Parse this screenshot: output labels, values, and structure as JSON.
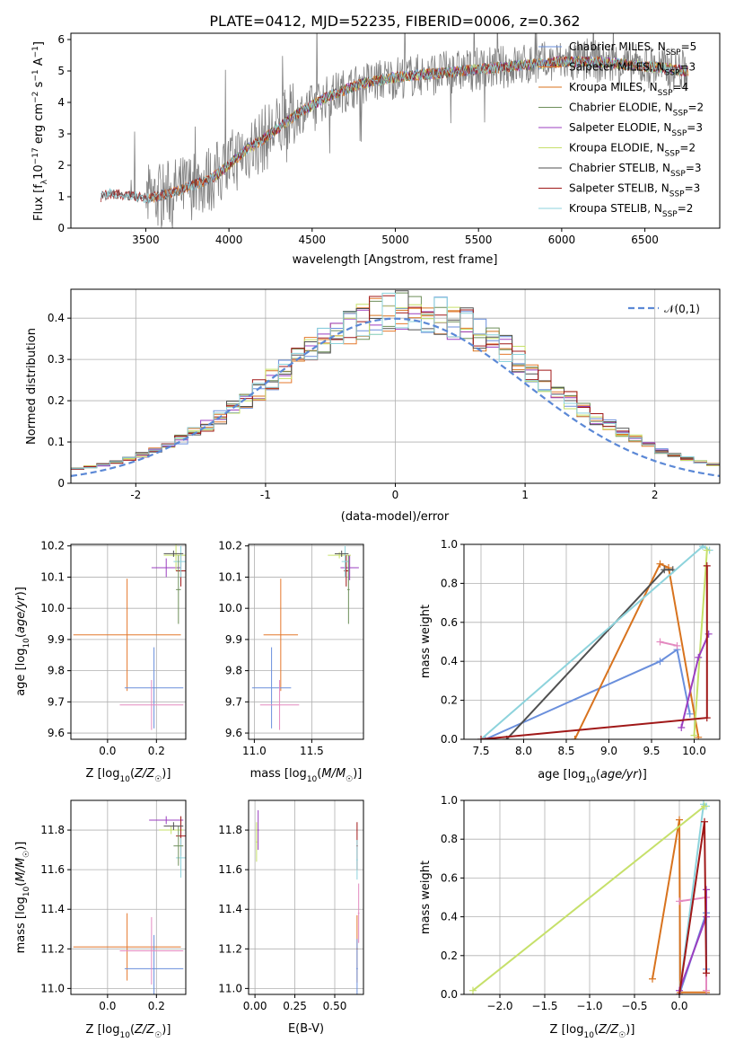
{
  "title": "PLATE=0412, MJD=52235, FIBERID=0006, z=0.362",
  "colors": {
    "chabrier_miles": "#6a8fdc",
    "salpeter_miles": "#e4782c",
    "kroupa_miles": "#d8731e",
    "chabrier_elodie": "#6e8f5a",
    "salpeter_elodie": "#9b3fc0",
    "kroupa_elodie": "#c6e06a",
    "chabrier_stelib": "#505050",
    "salpeter_stelib": "#a01818",
    "kroupa_stelib": "#8dd3dc",
    "data": "#808080",
    "normal": "#5b88d6",
    "pink": "#e48ac0"
  },
  "chart_data": [
    {
      "type": "line",
      "id": "spectrum",
      "title": "PLATE=0412, MJD=52235, FIBERID=0006, z=0.362",
      "xlabel": "wavelength [Angstrom, rest frame]",
      "ylabel": "Flux [f_λ 10^-17 erg cm^-2 s^-1 A^-1]",
      "xlim": [
        3050,
        6950
      ],
      "ylim": [
        0,
        6.2
      ],
      "xticks": [
        3500,
        4000,
        4500,
        5000,
        5500,
        6000,
        6500
      ],
      "yticks": [
        0,
        1,
        2,
        3,
        4,
        5,
        6
      ],
      "legend_position": "top-right",
      "legend": [
        "Chabrier MILES, N_SSP=5",
        "Salpeter MILES, N_SSP=3",
        "Kroupa MILES, N_SSP=4",
        "Chabrier ELODIE, N_SSP=2",
        "Salpeter ELODIE, N_SSP=3",
        "Kroupa ELODIE, N_SSP=2",
        "Chabrier STELIB, N_SSP=3",
        "Salpeter STELIB, N_SSP=3",
        "Kroupa STELIB, N_SSP=2"
      ],
      "model_continuum": {
        "x": [
          3230,
          3280,
          3350,
          3450,
          3520,
          3600,
          3700,
          3800,
          3900,
          4000,
          4100,
          4200,
          4300,
          4400,
          4500,
          4600,
          4700,
          4800,
          4900,
          5000,
          5200,
          5400,
          5600,
          5800,
          6000,
          6200,
          6400,
          6600,
          6750
        ],
        "y": [
          1.0,
          1.1,
          1.05,
          1.0,
          0.95,
          1.05,
          1.2,
          1.4,
          1.6,
          2.0,
          2.5,
          2.8,
          3.2,
          3.6,
          3.9,
          4.2,
          4.4,
          4.6,
          4.7,
          4.8,
          4.9,
          5.0,
          5.1,
          5.2,
          5.3,
          5.3,
          5.2,
          5.1,
          5.0
        ]
      }
    },
    {
      "type": "line",
      "id": "residuals",
      "xlabel": "(data-model)/error",
      "ylabel": "Normed distribution",
      "xlim": [
        -2.5,
        2.5
      ],
      "ylim": [
        0,
        0.47
      ],
      "xticks": [
        -2,
        -1,
        0,
        1,
        2
      ],
      "yticks": [
        0.0,
        0.1,
        0.2,
        0.3,
        0.4
      ],
      "legend_position": "top-right",
      "legend": [
        "𝒩(0,1)"
      ],
      "grid": true
    },
    {
      "type": "scatter",
      "id": "z_age",
      "xlabel": "Z [log10(Z/Z☉)]",
      "ylabel": "age [log10(age/yr)]",
      "xlim": [
        -0.15,
        0.32
      ],
      "ylim": [
        9.58,
        10.205
      ],
      "xticks": [
        0.0,
        0.2
      ],
      "xticklabels": [
        "0.0",
        "0.2"
      ],
      "yticks": [
        9.6,
        9.7,
        9.8,
        9.9,
        10.0,
        10.1,
        10.2
      ],
      "yticklabels": [
        "9.6",
        "9.7",
        "9.8",
        "9.9",
        "10.0",
        "10.1",
        "10.2"
      ],
      "grid": true
    },
    {
      "type": "scatter",
      "id": "mass_age",
      "xlabel": "mass [log10(M/M☉)]",
      "xlim": [
        10.95,
        11.95
      ],
      "ylim": [
        9.58,
        10.205
      ],
      "xticks": [
        11.0,
        11.5
      ],
      "xticklabels": [
        "11.0",
        "11.5"
      ],
      "yticks": [
        9.6,
        9.7,
        9.8,
        9.9,
        10.0,
        10.1,
        10.2
      ],
      "yticklabels": [
        "9.6",
        "9.7",
        "9.8",
        "9.9",
        "10.0",
        "10.1",
        "10.2"
      ],
      "grid": true
    },
    {
      "type": "line",
      "id": "age_weight",
      "xlabel": "age [log10(age/yr)]",
      "ylabel": "mass weight",
      "xlim": [
        7.3,
        10.3
      ],
      "ylim": [
        0,
        1
      ],
      "xticks": [
        7.5,
        8.0,
        8.5,
        9.0,
        9.5,
        10.0
      ],
      "xticklabels": [
        "7.5",
        "8.0",
        "8.5",
        "9.0",
        "9.5",
        "10.0"
      ],
      "yticks": [
        0,
        0.2,
        0.4,
        0.6,
        0.8,
        1.0
      ],
      "yticklabels": [
        "0.0",
        "0.2",
        "0.4",
        "0.6",
        "0.8",
        "1.0"
      ],
      "grid": true
    },
    {
      "type": "scatter",
      "id": "z_mass",
      "xlabel": "Z [log10(Z/Z☉)]",
      "ylabel": "mass [log10(M/M☉)]",
      "xlim": [
        -0.15,
        0.32
      ],
      "ylim": [
        10.97,
        11.95
      ],
      "xticks": [
        0.0,
        0.2
      ],
      "xticklabels": [
        "0.0",
        "0.2"
      ],
      "yticks": [
        11.0,
        11.2,
        11.4,
        11.6,
        11.8
      ],
      "yticklabels": [
        "11.0",
        "11.2",
        "11.4",
        "11.6",
        "11.8"
      ],
      "grid": true
    },
    {
      "type": "scatter",
      "id": "ebv_mass",
      "xlabel": "E(B-V)",
      "xlim": [
        -0.04,
        0.68
      ],
      "ylim": [
        10.97,
        11.95
      ],
      "xticks": [
        0.0,
        0.25,
        0.5
      ],
      "xticklabels": [
        "0.00",
        "0.25",
        "0.50"
      ],
      "yticks": [
        11.0,
        11.2,
        11.4,
        11.6,
        11.8
      ],
      "yticklabels": [
        "11.0",
        "11.2",
        "11.4",
        "11.6",
        "11.8"
      ],
      "grid": true
    },
    {
      "type": "line",
      "id": "z_weight",
      "xlabel": "Z [log10(Z/Z☉)]",
      "ylabel": "mass weight",
      "xlim": [
        -2.4,
        0.45
      ],
      "ylim": [
        0,
        1
      ],
      "xticks": [
        -2.0,
        -1.5,
        -1.0,
        -0.5,
        0.0
      ],
      "xticklabels": [
        "−2.0",
        "−1.5",
        "−1.0",
        "−0.5",
        "0.0"
      ],
      "yticks": [
        0,
        0.2,
        0.4,
        0.6,
        0.8,
        1.0
      ],
      "yticklabels": [
        "0.0",
        "0.2",
        "0.4",
        "0.6",
        "0.8",
        "1.0"
      ],
      "grid": true
    }
  ]
}
